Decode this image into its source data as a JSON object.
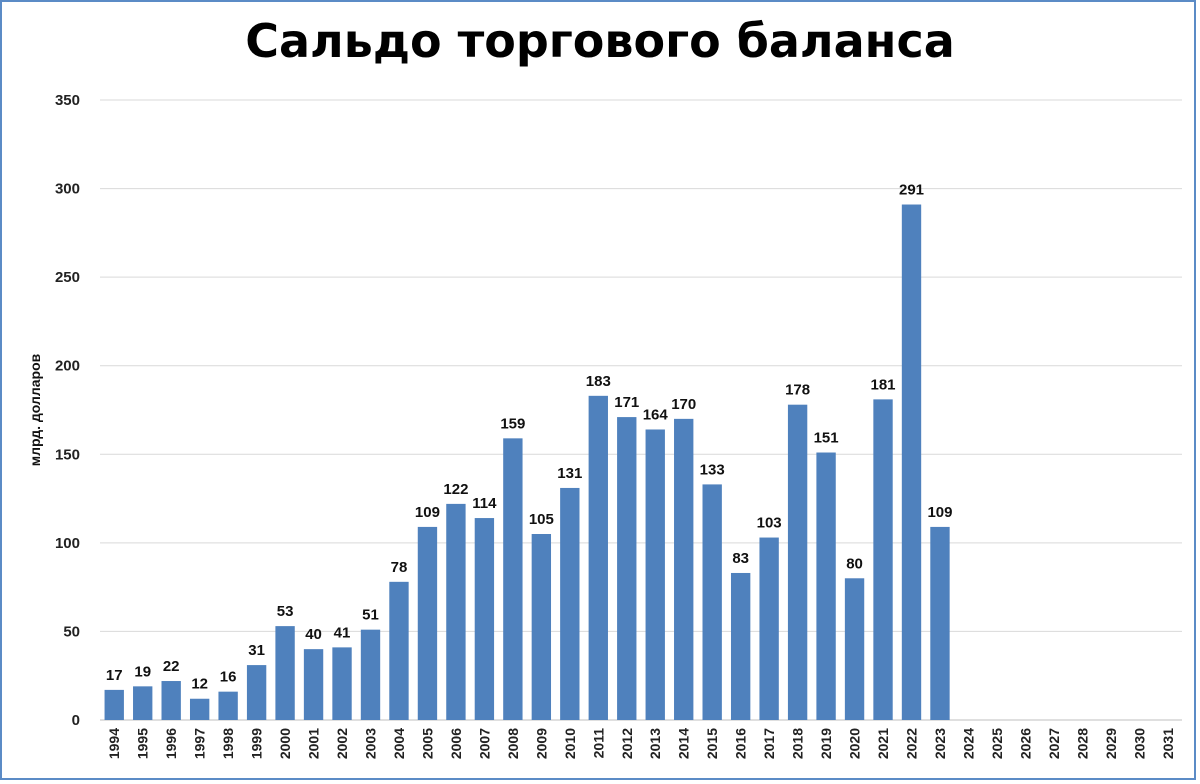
{
  "chart_data": {
    "type": "bar",
    "title": "Сальдо торгового баланса",
    "xlabel": "",
    "ylabel": "млрд. долларов",
    "ylim": [
      0,
      350
    ],
    "yticks": [
      0,
      50,
      100,
      150,
      200,
      250,
      300,
      350
    ],
    "grid": true,
    "legend": "none",
    "bar_color": "#4f81bd",
    "categories": [
      "1994",
      "1995",
      "1996",
      "1997",
      "1998",
      "1999",
      "2000",
      "2001",
      "2002",
      "2003",
      "2004",
      "2005",
      "2006",
      "2007",
      "2008",
      "2009",
      "2010",
      "2011",
      "2012",
      "2013",
      "2014",
      "2015",
      "2016",
      "2017",
      "2018",
      "2019",
      "2020",
      "2021",
      "2022",
      "2023",
      "2024",
      "2025",
      "2026",
      "2027",
      "2028",
      "2029",
      "2030",
      "2031"
    ],
    "values": [
      17,
      19,
      22,
      12,
      16,
      31,
      53,
      40,
      41,
      51,
      78,
      109,
      122,
      114,
      159,
      105,
      131,
      183,
      171,
      164,
      170,
      133,
      83,
      103,
      178,
      151,
      80,
      181,
      291,
      109,
      null,
      null,
      null,
      null,
      null,
      null,
      null,
      null
    ]
  }
}
